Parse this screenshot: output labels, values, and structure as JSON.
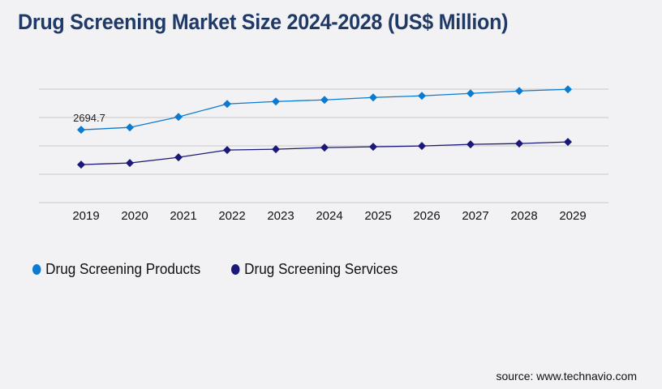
{
  "chart_data": {
    "type": "line",
    "title": "Drug Screening Market Size 2024-2028 (US$ Million)",
    "categories": [
      "2019",
      "2020",
      "2021",
      "2022",
      "2023",
      "2024",
      "2025",
      "2026",
      "2027",
      "2028",
      "2029"
    ],
    "ylim": [
      0,
      4200
    ],
    "grid": true,
    "legend_placement": "bottom-left",
    "series": [
      {
        "name": "Drug Screening Products",
        "color": "#0a7bd0",
        "values": [
          2694.7,
          2784,
          3174,
          3653,
          3743,
          3803,
          3892,
          3952,
          4042,
          4132,
          4192
        ]
      },
      {
        "name": "Drug Screening Services",
        "color": "#1a1878",
        "values": [
          1407,
          1467,
          1677,
          1946,
          1976,
          2036,
          2066,
          2096,
          2156,
          2186,
          2246
        ]
      }
    ],
    "annotations": [
      {
        "series": 0,
        "index": 0,
        "text": "2694.7"
      }
    ]
  },
  "source": "source: www.technavio.com"
}
